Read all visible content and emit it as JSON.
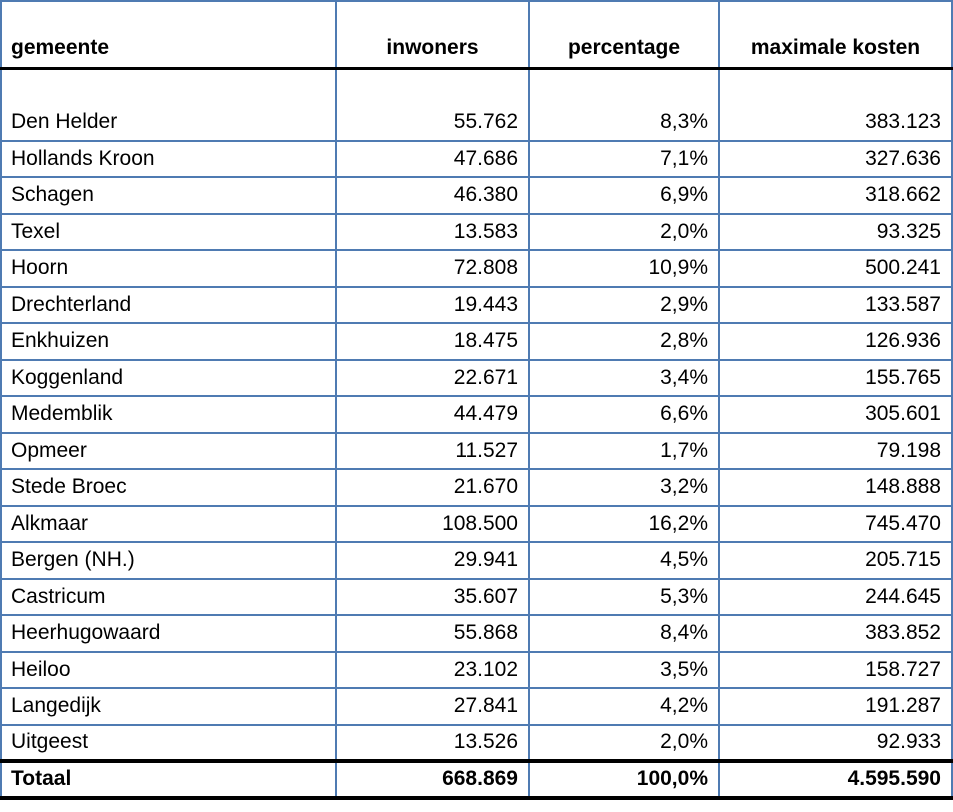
{
  "colors": {
    "border_blue": "#4f7bb2",
    "border_black": "#000000",
    "text": "#000000",
    "background": "#ffffff"
  },
  "table": {
    "columns": [
      {
        "key": "gemeente",
        "label": "gemeente"
      },
      {
        "key": "inwoners",
        "label": "inwoners"
      },
      {
        "key": "percentage",
        "label": "percentage"
      },
      {
        "key": "maximale_kosten",
        "label": "maximale kosten"
      }
    ],
    "rows": [
      {
        "gemeente": "Den Helder",
        "inwoners": "55.762",
        "percentage": "8,3%",
        "maximale_kosten": "383.123"
      },
      {
        "gemeente": "Hollands Kroon",
        "inwoners": "47.686",
        "percentage": "7,1%",
        "maximale_kosten": "327.636"
      },
      {
        "gemeente": "Schagen",
        "inwoners": "46.380",
        "percentage": "6,9%",
        "maximale_kosten": "318.662"
      },
      {
        "gemeente": "Texel",
        "inwoners": "13.583",
        "percentage": "2,0%",
        "maximale_kosten": "93.325"
      },
      {
        "gemeente": "Hoorn",
        "inwoners": "72.808",
        "percentage": "10,9%",
        "maximale_kosten": "500.241"
      },
      {
        "gemeente": "Drechterland",
        "inwoners": "19.443",
        "percentage": "2,9%",
        "maximale_kosten": "133.587"
      },
      {
        "gemeente": "Enkhuizen",
        "inwoners": "18.475",
        "percentage": "2,8%",
        "maximale_kosten": "126.936"
      },
      {
        "gemeente": "Koggenland",
        "inwoners": "22.671",
        "percentage": "3,4%",
        "maximale_kosten": "155.765"
      },
      {
        "gemeente": "Medemblik",
        "inwoners": "44.479",
        "percentage": "6,6%",
        "maximale_kosten": "305.601"
      },
      {
        "gemeente": "Opmeer",
        "inwoners": "11.527",
        "percentage": "1,7%",
        "maximale_kosten": "79.198"
      },
      {
        "gemeente": "Stede Broec",
        "inwoners": "21.670",
        "percentage": "3,2%",
        "maximale_kosten": "148.888"
      },
      {
        "gemeente": "Alkmaar",
        "inwoners": "108.500",
        "percentage": "16,2%",
        "maximale_kosten": "745.470"
      },
      {
        "gemeente": "Bergen (NH.)",
        "inwoners": "29.941",
        "percentage": "4,5%",
        "maximale_kosten": "205.715"
      },
      {
        "gemeente": "Castricum",
        "inwoners": "35.607",
        "percentage": "5,3%",
        "maximale_kosten": "244.645"
      },
      {
        "gemeente": "Heerhugowaard",
        "inwoners": "55.868",
        "percentage": "8,4%",
        "maximale_kosten": "383.852"
      },
      {
        "gemeente": "Heiloo",
        "inwoners": "23.102",
        "percentage": "3,5%",
        "maximale_kosten": "158.727"
      },
      {
        "gemeente": "Langedijk",
        "inwoners": "27.841",
        "percentage": "4,2%",
        "maximale_kosten": "191.287"
      },
      {
        "gemeente": "Uitgeest",
        "inwoners": "13.526",
        "percentage": "2,0%",
        "maximale_kosten": "92.933"
      }
    ],
    "total": {
      "gemeente": "Totaal",
      "inwoners": "668.869",
      "percentage": "100,0%",
      "maximale_kosten": "4.595.590"
    }
  }
}
